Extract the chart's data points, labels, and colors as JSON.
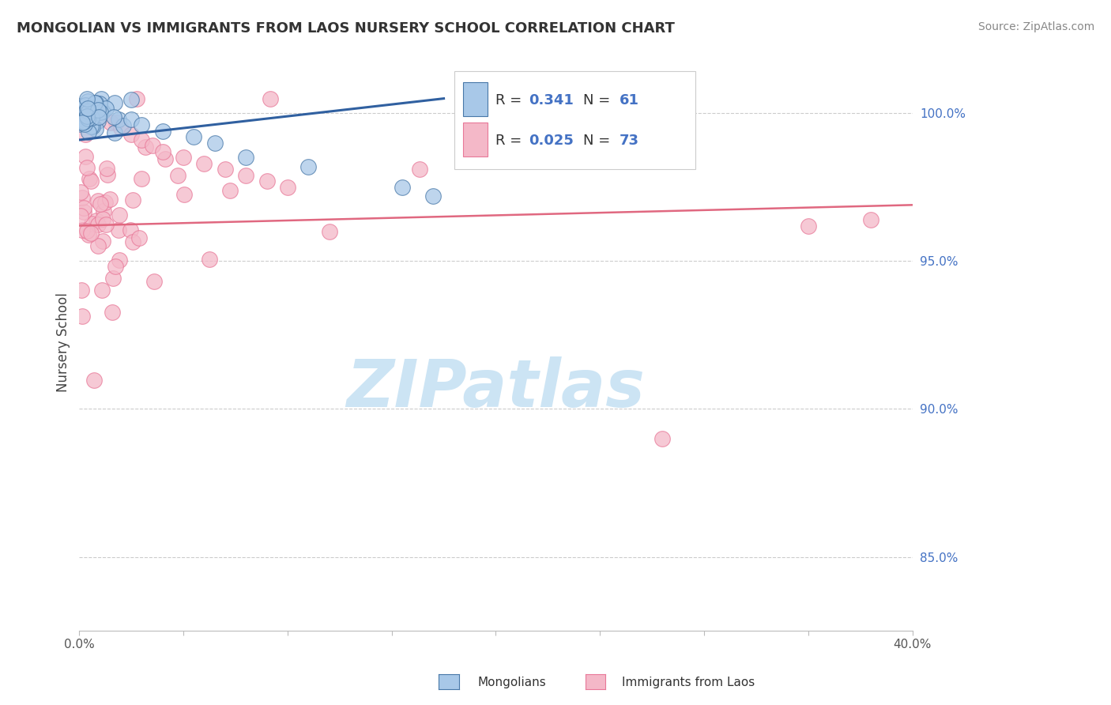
{
  "title": "MONGOLIAN VS IMMIGRANTS FROM LAOS NURSERY SCHOOL CORRELATION CHART",
  "source": "Source: ZipAtlas.com",
  "ylabel": "Nursery School",
  "ytick_labels": [
    "85.0%",
    "90.0%",
    "95.0%",
    "100.0%"
  ],
  "ytick_values": [
    0.85,
    0.9,
    0.95,
    1.0
  ],
  "xlim": [
    0.0,
    0.4
  ],
  "ylim": [
    0.825,
    1.02
  ],
  "blue_color": "#a8c8e8",
  "pink_color": "#f4b8c8",
  "blue_edge_color": "#4878a8",
  "pink_edge_color": "#e87898",
  "blue_trend_color": "#3060a0",
  "pink_trend_color": "#e06880",
  "blue_trend_x": [
    0.0,
    0.175
  ],
  "blue_trend_y": [
    0.991,
    1.005
  ],
  "pink_trend_x": [
    0.0,
    0.4
  ],
  "pink_trend_y": [
    0.962,
    0.969
  ],
  "grid_color": "#cccccc",
  "background_color": "#ffffff",
  "watermark_color": "#cce4f4",
  "R_color": "#4472c4",
  "legend_r1": "0.341",
  "legend_n1": "61",
  "legend_r2": "0.025",
  "legend_n2": "73"
}
